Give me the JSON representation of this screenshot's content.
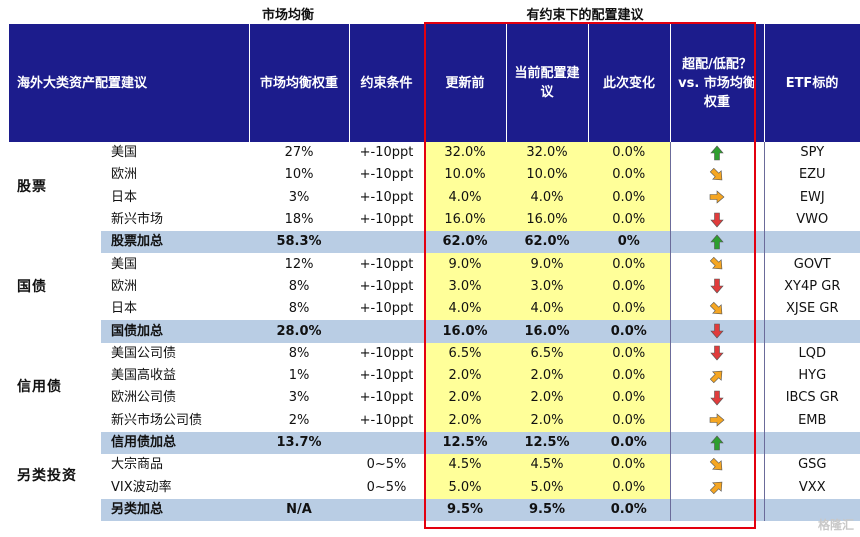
{
  "captions": {
    "market_equilibrium": "市场均衡",
    "constrained": "有约束下的配置建议"
  },
  "headers": {
    "asset": "海外大类资产配置建议",
    "eq_weight": "市场均衡权重",
    "constraint": "约束条件",
    "before": "更新前",
    "current": "当前配置建议",
    "change": "此次变化",
    "over_under": "超配/低配？vs. 市场均衡权重",
    "etf": "ETF标的"
  },
  "groups": [
    {
      "label": "股票",
      "rows": [
        {
          "name": "美国",
          "weight": "27%",
          "constraint": "+-10ppt",
          "before": "32.0%",
          "current": "32.0%",
          "change": "0.0%",
          "arrow": "up",
          "etf": "SPY"
        },
        {
          "name": "欧洲",
          "weight": "10%",
          "constraint": "+-10ppt",
          "before": "10.0%",
          "current": "10.0%",
          "change": "0.0%",
          "arrow": "down-right",
          "etf": "EZU"
        },
        {
          "name": "日本",
          "weight": "3%",
          "constraint": "+-10ppt",
          "before": "4.0%",
          "current": "4.0%",
          "change": "0.0%",
          "arrow": "right",
          "etf": "EWJ"
        },
        {
          "name": "新兴市场",
          "weight": "18%",
          "constraint": "+-10ppt",
          "before": "16.0%",
          "current": "16.0%",
          "change": "0.0%",
          "arrow": "down",
          "etf": "VWO"
        }
      ],
      "total": {
        "name": "股票加总",
        "weight": "58.3%",
        "constraint": "",
        "before": "62.0%",
        "current": "62.0%",
        "change": "0%",
        "arrow": "up",
        "etf": ""
      }
    },
    {
      "label": "国债",
      "rows": [
        {
          "name": "美国",
          "weight": "12%",
          "constraint": "+-10ppt",
          "before": "9.0%",
          "current": "9.0%",
          "change": "0.0%",
          "arrow": "down-right",
          "etf": "GOVT"
        },
        {
          "name": "欧洲",
          "weight": "8%",
          "constraint": "+-10ppt",
          "before": "3.0%",
          "current": "3.0%",
          "change": "0.0%",
          "arrow": "down",
          "etf": "XY4P GR"
        },
        {
          "name": "日本",
          "weight": "8%",
          "constraint": "+-10ppt",
          "before": "4.0%",
          "current": "4.0%",
          "change": "0.0%",
          "arrow": "down-right",
          "etf": "XJSE GR"
        }
      ],
      "total": {
        "name": "国债加总",
        "weight": "28.0%",
        "constraint": "",
        "before": "16.0%",
        "current": "16.0%",
        "change": "0.0%",
        "arrow": "down",
        "etf": ""
      }
    },
    {
      "label": "信用债",
      "rows": [
        {
          "name": "美国公司债",
          "weight": "8%",
          "constraint": "+-10ppt",
          "before": "6.5%",
          "current": "6.5%",
          "change": "0.0%",
          "arrow": "down",
          "etf": "LQD"
        },
        {
          "name": "美国高收益",
          "weight": "1%",
          "constraint": "+-10ppt",
          "before": "2.0%",
          "current": "2.0%",
          "change": "0.0%",
          "arrow": "up-right",
          "etf": "HYG"
        },
        {
          "name": "欧洲公司债",
          "weight": "3%",
          "constraint": "+-10ppt",
          "before": "2.0%",
          "current": "2.0%",
          "change": "0.0%",
          "arrow": "down",
          "etf": "IBCS GR"
        },
        {
          "name": "新兴市场公司债",
          "weight": "2%",
          "constraint": "+-10ppt",
          "before": "2.0%",
          "current": "2.0%",
          "change": "0.0%",
          "arrow": "right",
          "etf": "EMB"
        }
      ],
      "total": {
        "name": "信用债加总",
        "weight": "13.7%",
        "constraint": "",
        "before": "12.5%",
        "current": "12.5%",
        "change": "0.0%",
        "arrow": "up",
        "etf": ""
      }
    },
    {
      "label": "另类投资",
      "rows": [
        {
          "name": "大宗商品",
          "weight": "",
          "constraint": "0~5%",
          "before": "4.5%",
          "current": "4.5%",
          "change": "0.0%",
          "arrow": "down-right",
          "etf": "GSG"
        },
        {
          "name": "VIX波动率",
          "weight": "",
          "constraint": "0~5%",
          "before": "5.0%",
          "current": "5.0%",
          "change": "0.0%",
          "arrow": "up-right",
          "etf": "VXX"
        }
      ],
      "total": {
        "name": "另类加总",
        "weight": "N/A",
        "constraint": "",
        "before": "9.5%",
        "current": "9.5%",
        "change": "0.0%",
        "arrow": "",
        "etf": ""
      }
    }
  ],
  "arrow_colors": {
    "up": "#2e9e2e",
    "down": "#e03c3c",
    "right": "#f5a623",
    "down-right": "#f5a623",
    "up-right": "#f5a623"
  },
  "watermark": "格隆汇"
}
